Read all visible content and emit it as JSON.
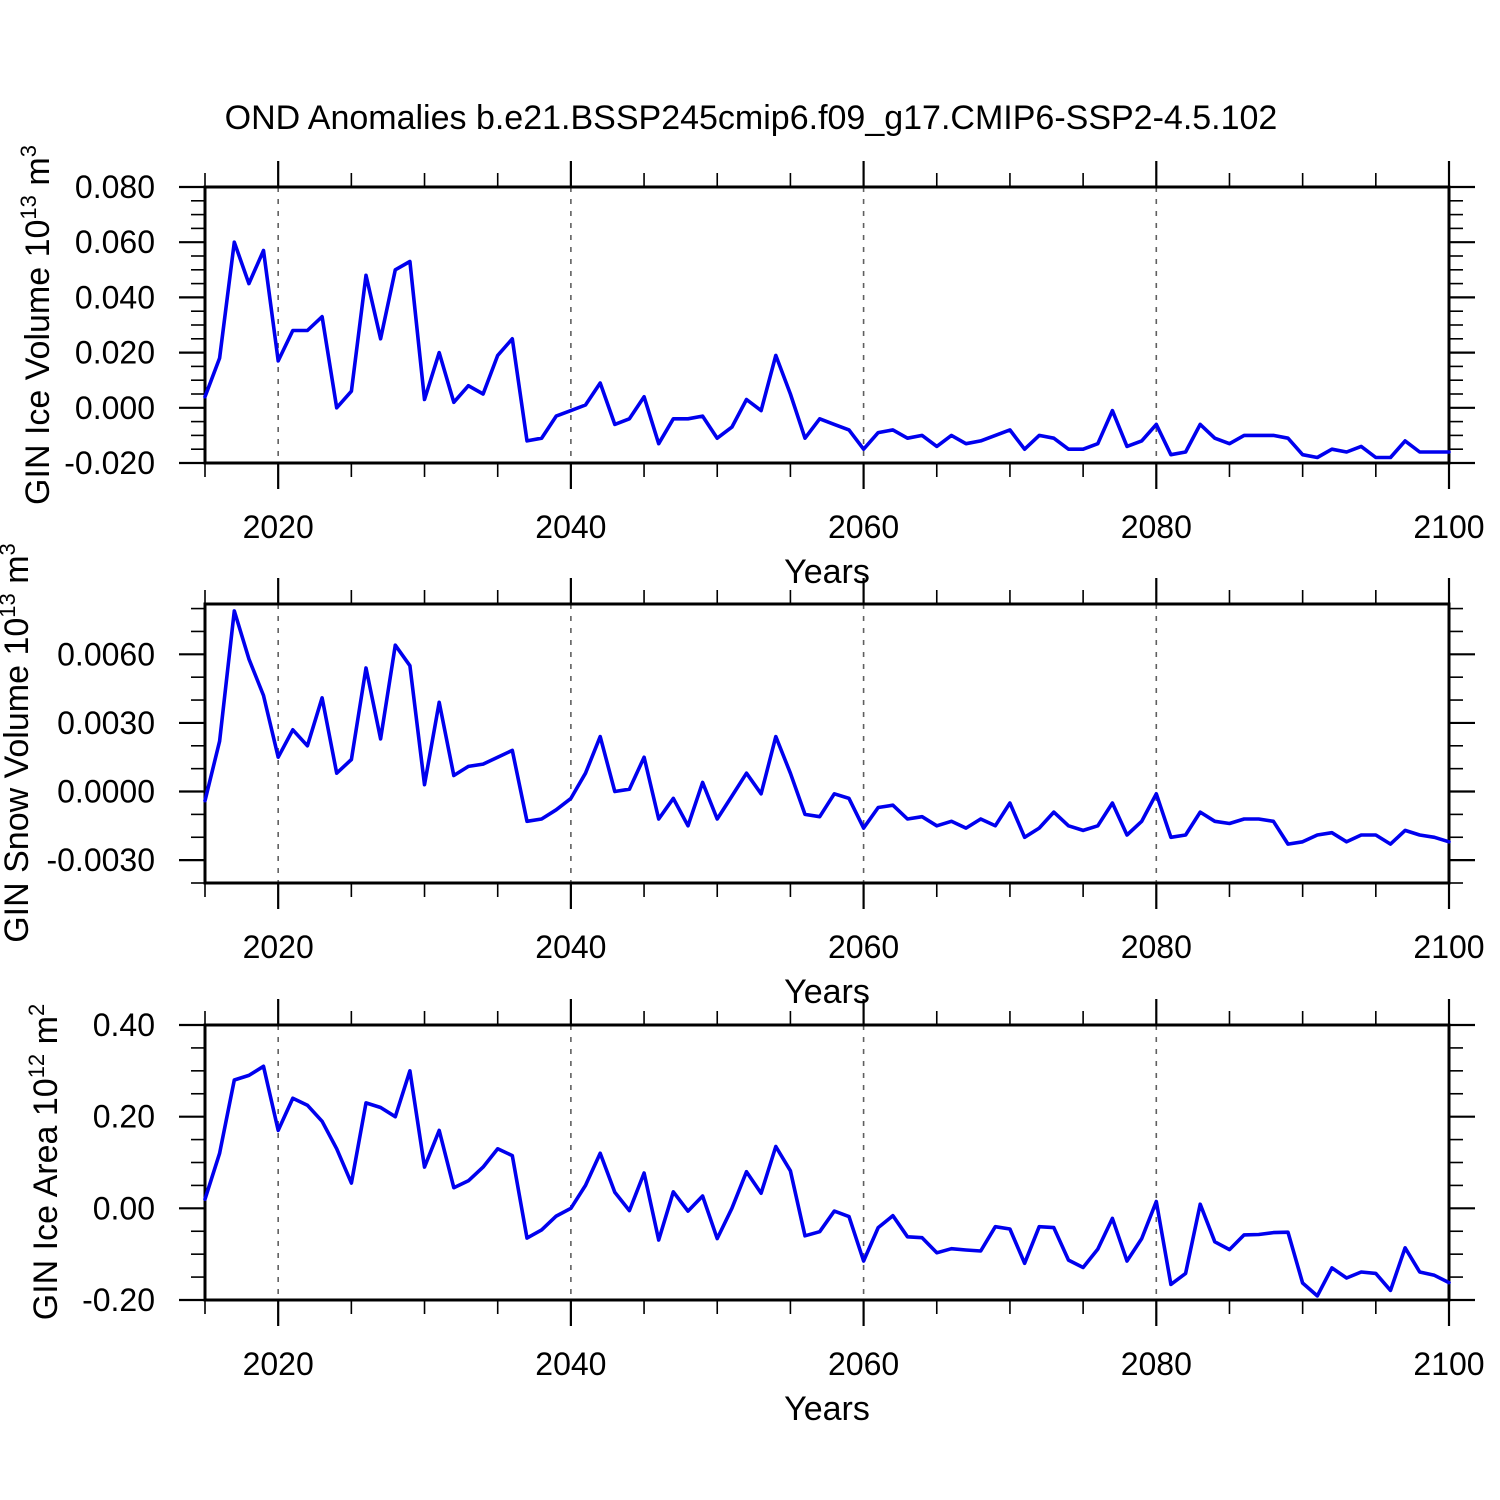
{
  "title": "OND Anomalies b.e21.BSSP245cmip6.f09_g17.CMIP6-SSP2-4.5.102",
  "chart_data": {
    "type": "line",
    "x_label": "Years",
    "x_range": [
      2015,
      2100
    ],
    "x_major_ticks": [
      2020,
      2040,
      2060,
      2080,
      2100
    ],
    "x_tick_labels": [
      "2020",
      "2040",
      "2060",
      "2080",
      "2100"
    ],
    "x_minor_step": 5,
    "gridline_years": [
      2020,
      2040,
      2060,
      2080
    ],
    "line_color": "#0000ee",
    "grid_color": "#606060",
    "years": [
      2015,
      2016,
      2017,
      2018,
      2019,
      2020,
      2021,
      2022,
      2023,
      2024,
      2025,
      2026,
      2027,
      2028,
      2029,
      2030,
      2031,
      2032,
      2033,
      2034,
      2035,
      2036,
      2037,
      2038,
      2039,
      2040,
      2041,
      2042,
      2043,
      2044,
      2045,
      2046,
      2047,
      2048,
      2049,
      2050,
      2051,
      2052,
      2053,
      2054,
      2055,
      2056,
      2057,
      2058,
      2059,
      2060,
      2061,
      2062,
      2063,
      2064,
      2065,
      2066,
      2067,
      2068,
      2069,
      2070,
      2071,
      2072,
      2073,
      2074,
      2075,
      2076,
      2077,
      2078,
      2079,
      2080,
      2081,
      2082,
      2083,
      2084,
      2085,
      2086,
      2087,
      2088,
      2089,
      2090,
      2091,
      2092,
      2093,
      2094,
      2095,
      2096,
      2097,
      2098,
      2099,
      2100
    ],
    "panels": [
      {
        "id": "ice-volume",
        "y_label": {
          "text": "GIN Ice Volume 10",
          "exp": "13",
          "unit": " m",
          "unit_exp": "3"
        },
        "y_range": [
          -0.02,
          0.08
        ],
        "y_major_ticks": [
          0.08,
          0.06,
          0.04,
          0.02,
          0.0,
          -0.02
        ],
        "y_tick_labels": [
          "0.080",
          "0.060",
          "0.040",
          "0.020",
          "0.000",
          "-0.020"
        ],
        "y_minor_step": 0.005,
        "values": [
          0.004,
          0.018,
          0.06,
          0.045,
          0.057,
          0.017,
          0.028,
          0.028,
          0.033,
          0.0,
          0.006,
          0.048,
          0.025,
          0.05,
          0.053,
          0.003,
          0.02,
          0.002,
          0.008,
          0.005,
          0.019,
          0.025,
          -0.012,
          -0.011,
          -0.003,
          -0.001,
          0.001,
          0.009,
          -0.006,
          -0.004,
          0.004,
          -0.013,
          -0.004,
          -0.004,
          -0.003,
          -0.011,
          -0.007,
          0.003,
          -0.001,
          0.019,
          0.005,
          -0.011,
          -0.004,
          -0.006,
          -0.008,
          -0.015,
          -0.009,
          -0.008,
          -0.011,
          -0.01,
          -0.014,
          -0.01,
          -0.013,
          -0.012,
          -0.01,
          -0.008,
          -0.015,
          -0.01,
          -0.011,
          -0.015,
          -0.015,
          -0.013,
          -0.001,
          -0.014,
          -0.012,
          -0.006,
          -0.017,
          -0.016,
          -0.006,
          -0.011,
          -0.013,
          -0.01,
          -0.01,
          -0.01,
          -0.011,
          -0.017,
          -0.018,
          -0.015,
          -0.016,
          -0.014,
          -0.018,
          -0.018,
          -0.012,
          -0.016,
          -0.016,
          -0.016
        ]
      },
      {
        "id": "snow-volume",
        "y_label": {
          "text": "GIN Snow Volume 10",
          "exp": "13",
          "unit": " m",
          "unit_exp": "3"
        },
        "y_range": [
          -0.004,
          0.0082
        ],
        "y_major_ticks": [
          0.006,
          0.003,
          0.0,
          -0.003
        ],
        "y_tick_labels": [
          "0.0060",
          "0.0030",
          "0.0000",
          "-0.0030"
        ],
        "y_minor_step": 0.001,
        "values": [
          -0.0004,
          0.0022,
          0.0079,
          0.0058,
          0.0042,
          0.0015,
          0.0027,
          0.002,
          0.0041,
          0.0008,
          0.0014,
          0.0054,
          0.0023,
          0.0064,
          0.0055,
          0.0003,
          0.0039,
          0.0007,
          0.0011,
          0.0012,
          0.0015,
          0.0018,
          -0.0013,
          -0.0012,
          -0.0008,
          -0.0003,
          0.0008,
          0.0024,
          0.0,
          0.0001,
          0.0015,
          -0.0012,
          -0.0003,
          -0.0015,
          0.0004,
          -0.0012,
          -0.0002,
          0.0008,
          -0.0001,
          0.0024,
          0.0008,
          -0.001,
          -0.0011,
          -0.0001,
          -0.0003,
          -0.0016,
          -0.0007,
          -0.0006,
          -0.0012,
          -0.0011,
          -0.0015,
          -0.0013,
          -0.0016,
          -0.0012,
          -0.0015,
          -0.0005,
          -0.002,
          -0.0016,
          -0.0009,
          -0.0015,
          -0.0017,
          -0.0015,
          -0.0005,
          -0.0019,
          -0.0013,
          -0.0001,
          -0.002,
          -0.0019,
          -0.0009,
          -0.0013,
          -0.0014,
          -0.0012,
          -0.0012,
          -0.0013,
          -0.0023,
          -0.0022,
          -0.0019,
          -0.0018,
          -0.0022,
          -0.0019,
          -0.0019,
          -0.0023,
          -0.0017,
          -0.0019,
          -0.002,
          -0.0022
        ]
      },
      {
        "id": "ice-area",
        "y_label": {
          "text": "GIN Ice Area 10",
          "exp": "12",
          "unit": " m",
          "unit_exp": "2"
        },
        "y_range": [
          -0.2,
          0.4
        ],
        "y_major_ticks": [
          0.4,
          0.2,
          0.0,
          -0.2
        ],
        "y_tick_labels": [
          "0.40",
          "0.20",
          "0.00",
          "-0.20"
        ],
        "y_minor_step": 0.05,
        "values": [
          0.02,
          0.12,
          0.28,
          0.29,
          0.31,
          0.17,
          0.24,
          0.225,
          0.19,
          0.13,
          0.055,
          0.23,
          0.22,
          0.2,
          0.3,
          0.09,
          0.17,
          0.045,
          0.06,
          0.09,
          0.13,
          0.115,
          -0.065,
          -0.047,
          -0.017,
          0.0,
          0.05,
          0.12,
          0.035,
          -0.005,
          0.077,
          -0.069,
          0.036,
          -0.006,
          0.027,
          -0.066,
          0.0,
          0.08,
          0.033,
          0.135,
          0.082,
          -0.06,
          -0.051,
          -0.006,
          -0.018,
          -0.115,
          -0.042,
          -0.016,
          -0.062,
          -0.064,
          -0.097,
          -0.088,
          -0.091,
          -0.093,
          -0.04,
          -0.045,
          -0.12,
          -0.04,
          -0.042,
          -0.113,
          -0.129,
          -0.089,
          -0.022,
          -0.115,
          -0.066,
          0.015,
          -0.166,
          -0.142,
          0.009,
          -0.073,
          -0.09,
          -0.058,
          -0.057,
          -0.053,
          -0.052,
          -0.163,
          -0.191,
          -0.13,
          -0.152,
          -0.139,
          -0.142,
          -0.179,
          -0.086,
          -0.139,
          -0.146,
          -0.162
        ]
      }
    ]
  }
}
